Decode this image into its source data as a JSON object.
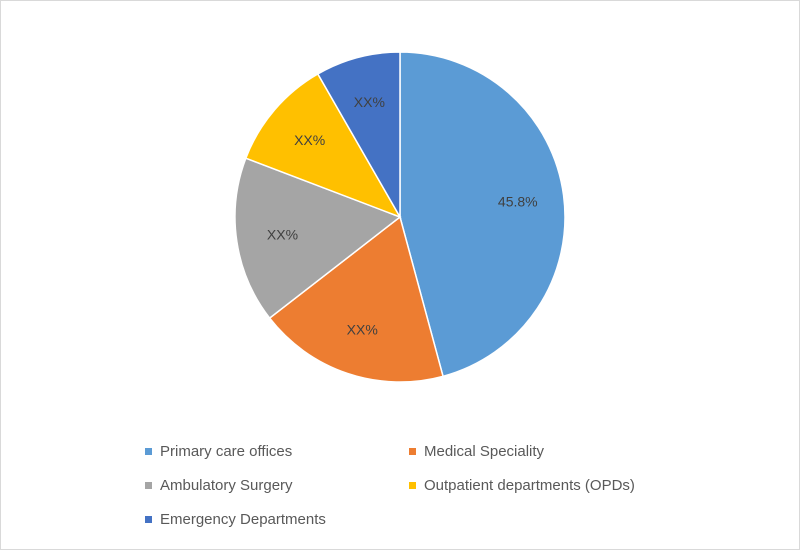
{
  "chart_data": {
    "type": "pie",
    "title": "",
    "start_angle_deg": 0,
    "direction": "clockwise",
    "legend_position": "bottom",
    "slices": [
      {
        "name": "Primary care offices",
        "value": 45.8,
        "label": "45.8%",
        "color": "#5b9bd5"
      },
      {
        "name": "Medical Speciality",
        "value": 18.7,
        "label": "XX%",
        "color": "#ed7d31"
      },
      {
        "name": "Ambulatory Surgery",
        "value": 16.3,
        "label": "XX%",
        "color": "#a5a5a5"
      },
      {
        "name": "Outpatient departments (OPDs)",
        "value": 10.9,
        "label": "XX%",
        "color": "#ffc000"
      },
      {
        "name": "Emergency Departments",
        "value": 8.3,
        "label": "XX%",
        "color": "#4472c4"
      }
    ]
  }
}
